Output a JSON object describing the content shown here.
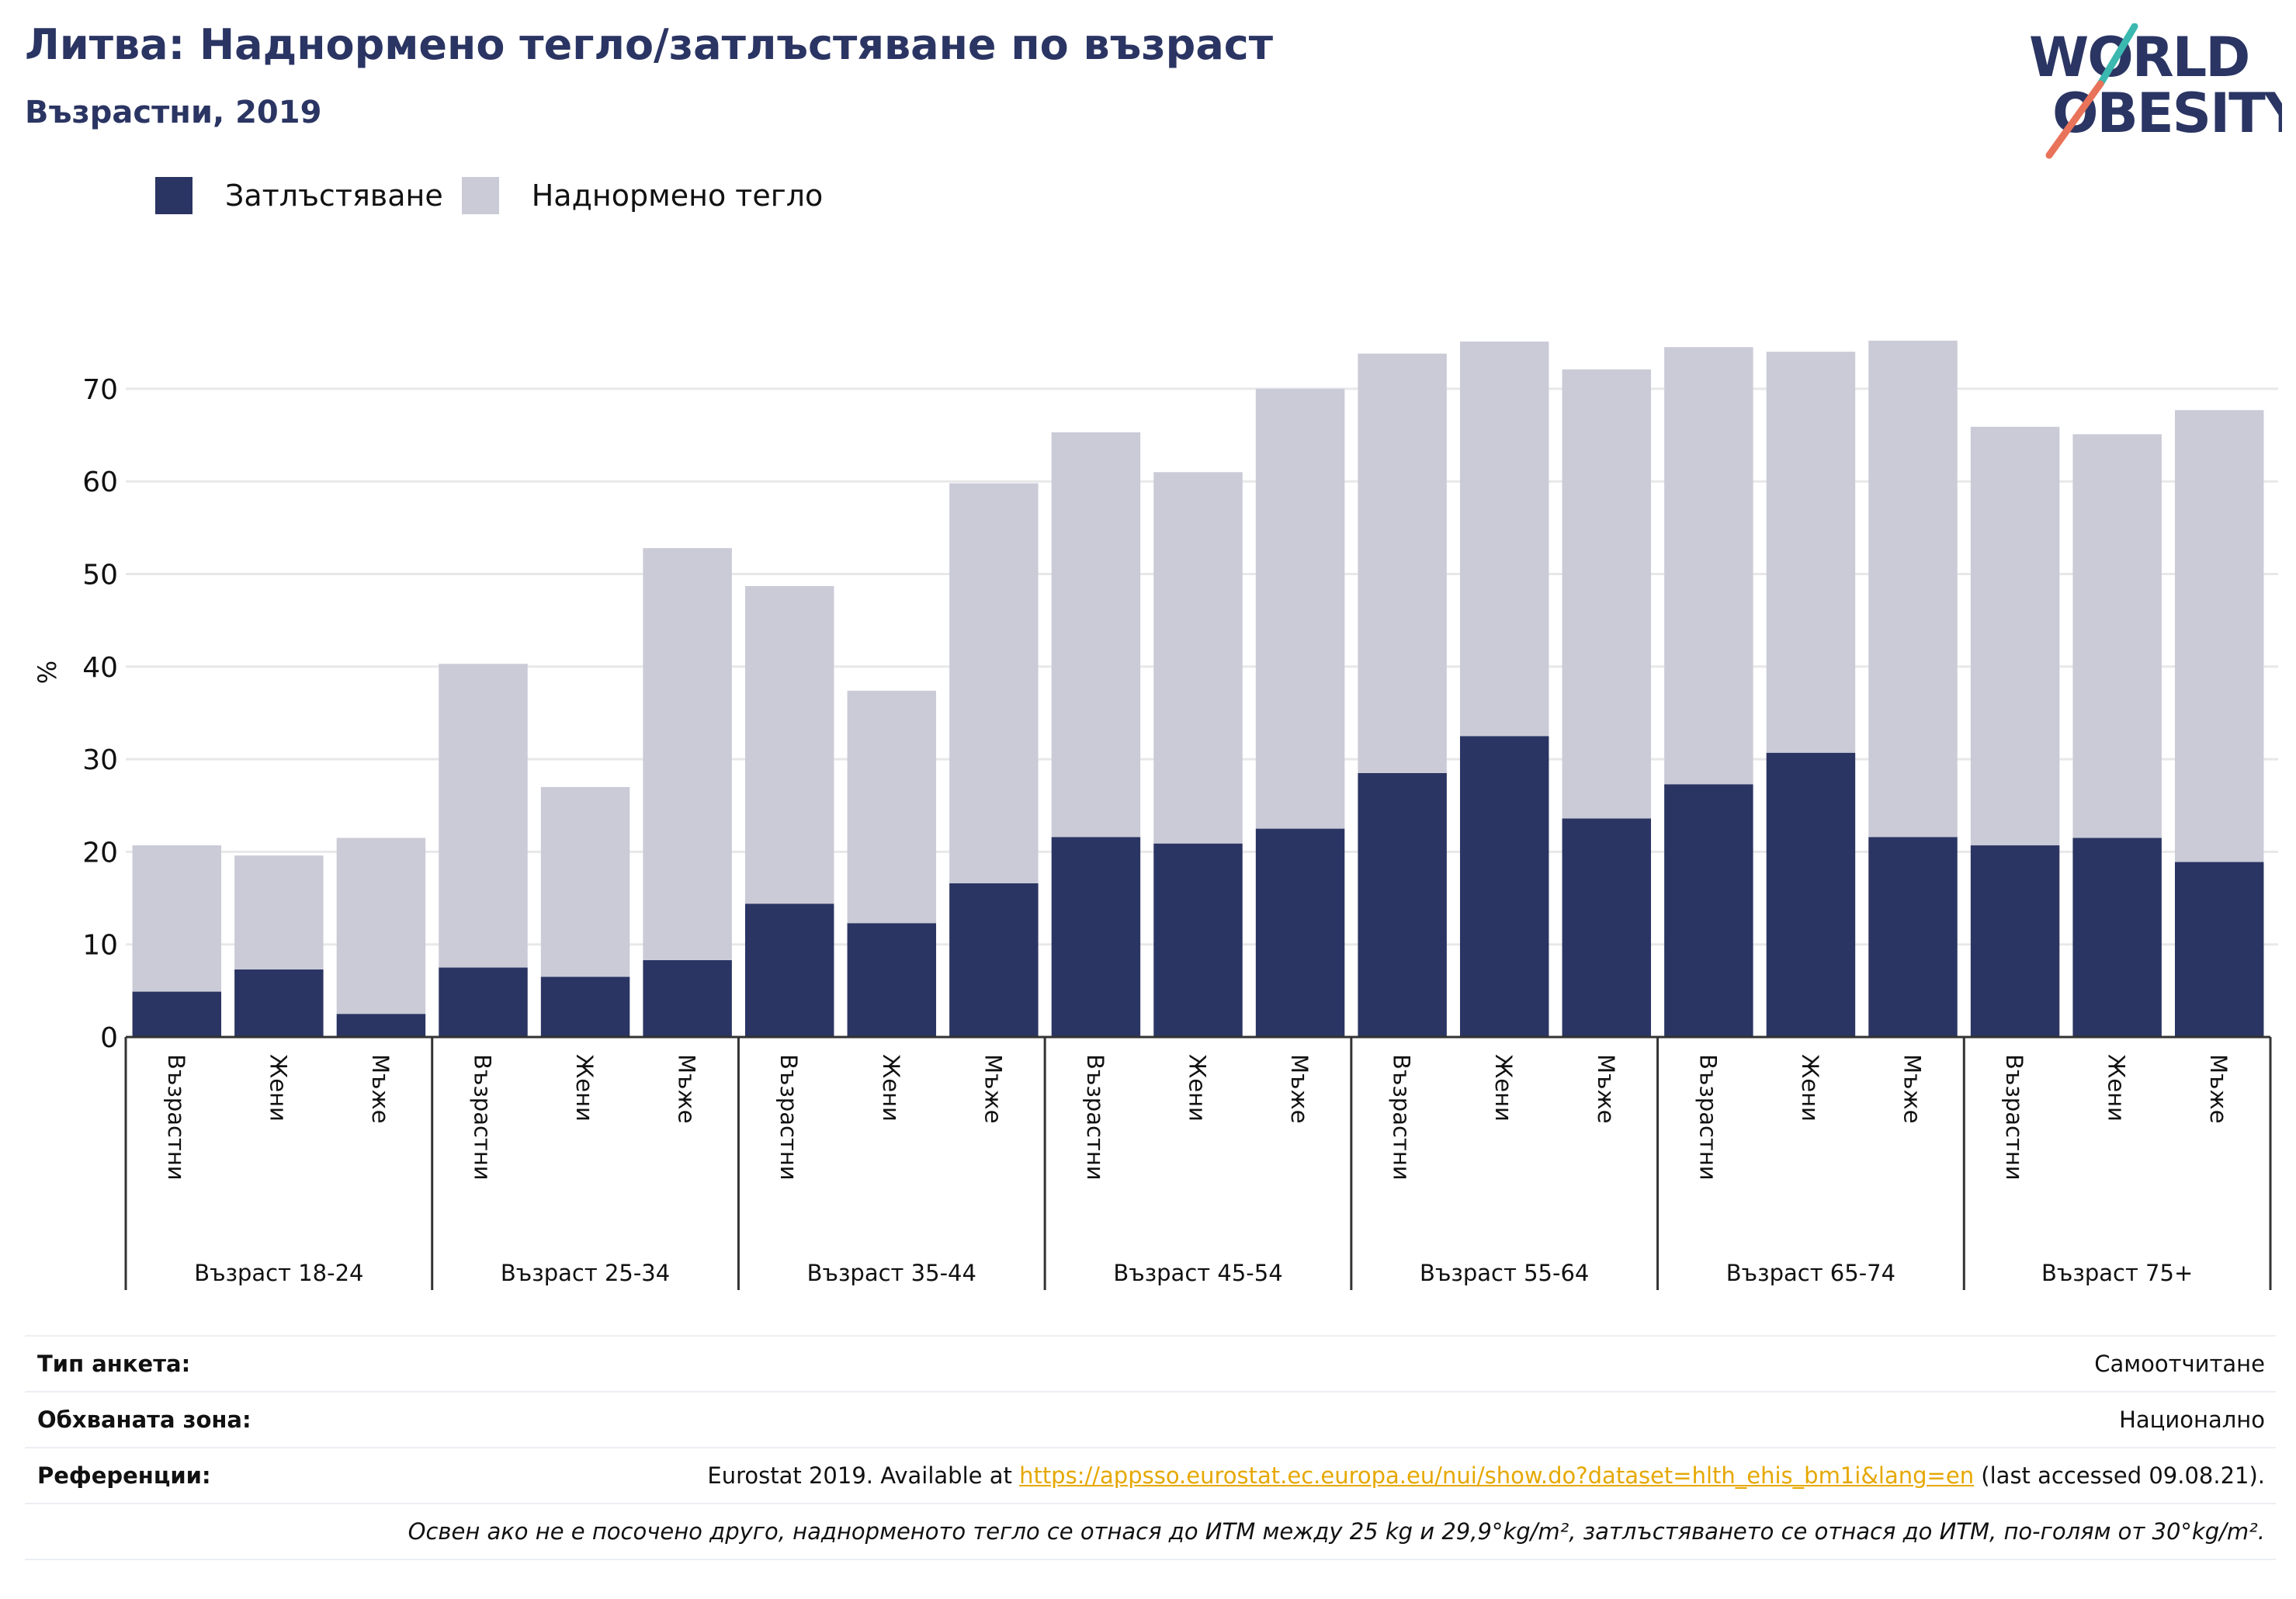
{
  "header": {
    "title": "Литва: Наднормено тегло/затлъстяване по възраст",
    "subtitle": "Възрастни, 2019"
  },
  "logo": {
    "line1": "WORLD",
    "line2": "OBESITY"
  },
  "colors": {
    "obesity": "#2b3563",
    "overweight": "#cacbd7",
    "title": "#2b3563",
    "grid": "#e8e8ea",
    "logo_accent_teal": "#3bb8b0",
    "logo_accent_red": "#e8735a",
    "link": "#e6a800"
  },
  "chart_data": {
    "type": "bar",
    "stacked": true,
    "ylabel": "%",
    "ylim": [
      0,
      80
    ],
    "yticks": [
      0,
      10,
      20,
      30,
      40,
      50,
      60,
      70
    ],
    "grid": true,
    "legend_position": "top-left",
    "legend": [
      "Затлъстяване",
      "Наднормено тегло"
    ],
    "groups": [
      "Възраст 18-24",
      "Възраст 25-34",
      "Възраст 35-44",
      "Възраст 45-54",
      "Възраст 55-64",
      "Възраст 65-74",
      "Възраст 75+"
    ],
    "sub_categories": [
      "Възрастни",
      "Жени",
      "Мъже"
    ],
    "series": [
      {
        "name": "Затлъстяване",
        "values": [
          4.9,
          7.3,
          2.5,
          7.5,
          6.5,
          8.3,
          14.4,
          12.3,
          16.6,
          21.6,
          20.9,
          22.5,
          28.5,
          32.5,
          23.6,
          27.3,
          30.7,
          21.6,
          20.7,
          21.5,
          18.9
        ]
      },
      {
        "name": "Наднормено тегло",
        "values": [
          15.8,
          12.3,
          19.0,
          32.8,
          20.5,
          44.5,
          34.3,
          25.1,
          43.2,
          43.7,
          40.1,
          47.5,
          45.3,
          42.6,
          48.5,
          47.2,
          43.3,
          53.6,
          45.2,
          43.6,
          48.8
        ]
      }
    ]
  },
  "info": {
    "survey_label": "Тип анкета:",
    "survey_value": "Самоотчитане",
    "area_label": "Обхваната зона:",
    "area_value": "Национално",
    "refs_label": "Референции:",
    "refs_prefix": "Eurostat 2019. Available at ",
    "refs_link": "https://appsso.eurostat.ec.europa.eu/nui/show.do?dataset=hlth_ehis_bm1i&lang=en",
    "refs_suffix": " (last accessed 09.08.21).",
    "note": "Освен ако не е посочено друго, наднорменото тегло се отнася до ИТМ между 25 kg и 29,9°kg/m², затлъстяването се отнася до ИТМ, по-голям от 30°kg/m²."
  }
}
